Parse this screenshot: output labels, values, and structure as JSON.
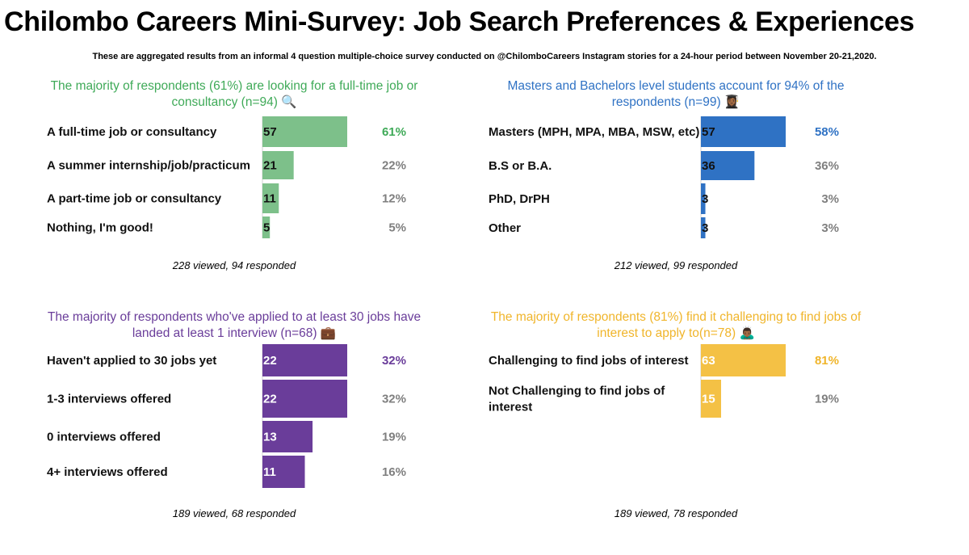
{
  "title": "Chilombo Careers Mini-Survey: Job Search Preferences & Experiences",
  "subtitle": "These are aggregated results from an informal 4 question multiple-choice survey conducted on @ChilomboCareers Instagram stories for a 24-hour period between November 20-21,2020.",
  "chart_data": [
    {
      "type": "bar",
      "title": "The majority of respondents (61%) are looking for a full-time job or consultancy (n=94) 🔍",
      "categories": [
        "A full-time job or consultancy",
        "A summer internship/job/practicum",
        "A part-time job or consultancy",
        "Nothing, I'm good!"
      ],
      "values": [
        57,
        21,
        11,
        5
      ],
      "percents": [
        "61%",
        "22%",
        "12%",
        "5%"
      ],
      "value_labels": [
        "57",
        "21",
        "11",
        "5"
      ],
      "color": "#7dc08a",
      "heading_color": "#3faa58",
      "value_text_color": "#111111",
      "highlight_color": "#3faa58",
      "footnote": "228 viewed, 94 responded"
    },
    {
      "type": "bar",
      "title": "Masters and Bachelors level students account for 94% of the respondents (n=99) 👩🏾‍🎓",
      "categories": [
        "Masters (MPH, MPA, MBA, MSW, etc)",
        "B.S or B.A.",
        "PhD, DrPH",
        "Other"
      ],
      "values": [
        57,
        36,
        3,
        3
      ],
      "percents": [
        "58%",
        "36%",
        "3%",
        "3%"
      ],
      "value_labels": [
        "57",
        "36",
        "3",
        "3"
      ],
      "color": "#2f72c4",
      "heading_color": "#2f72c4",
      "value_text_color": "#111111",
      "highlight_color": "#2f72c4",
      "footnote": "212 viewed, 99 responded"
    },
    {
      "type": "bar",
      "title": "The majority of respondents who've applied to at least 30 jobs have landed at least 1 interview (n=68) 💼",
      "categories": [
        "Haven't applied to 30 jobs yet",
        "1-3 interviews offered",
        "0 interviews offered",
        "4+ interviews offered"
      ],
      "values": [
        22,
        22,
        13,
        11
      ],
      "percents": [
        "32%",
        "32%",
        "19%",
        "16%"
      ],
      "value_labels": [
        "22",
        "22",
        "13",
        "11"
      ],
      "color": "#6a3d9a",
      "heading_color": "#6a3d9a",
      "value_text_color": "#ffffff",
      "highlight_color": "#6a3d9a",
      "footnote": "189 viewed, 68 responded"
    },
    {
      "type": "bar",
      "title": "The majority of respondents (81%) find it challenging to find jobs of interest to apply to(n=78) 🙇🏾‍♂️",
      "categories": [
        "Challenging to find jobs of interest",
        "Not Challenging  to find jobs of interest"
      ],
      "category_lines": [
        [
          "Challenging to find jobs of interest"
        ],
        [
          "Not Challenging  to find jobs of",
          "interest"
        ]
      ],
      "values": [
        63,
        15
      ],
      "percents": [
        "81%",
        "19%"
      ],
      "value_labels": [
        "63",
        "15"
      ],
      "color": "#f4c145",
      "heading_color": "#f0b52b",
      "value_text_color": "#ffffff",
      "highlight_color": "#f0b52b",
      "footnote": "189 viewed, 78 responded"
    }
  ]
}
